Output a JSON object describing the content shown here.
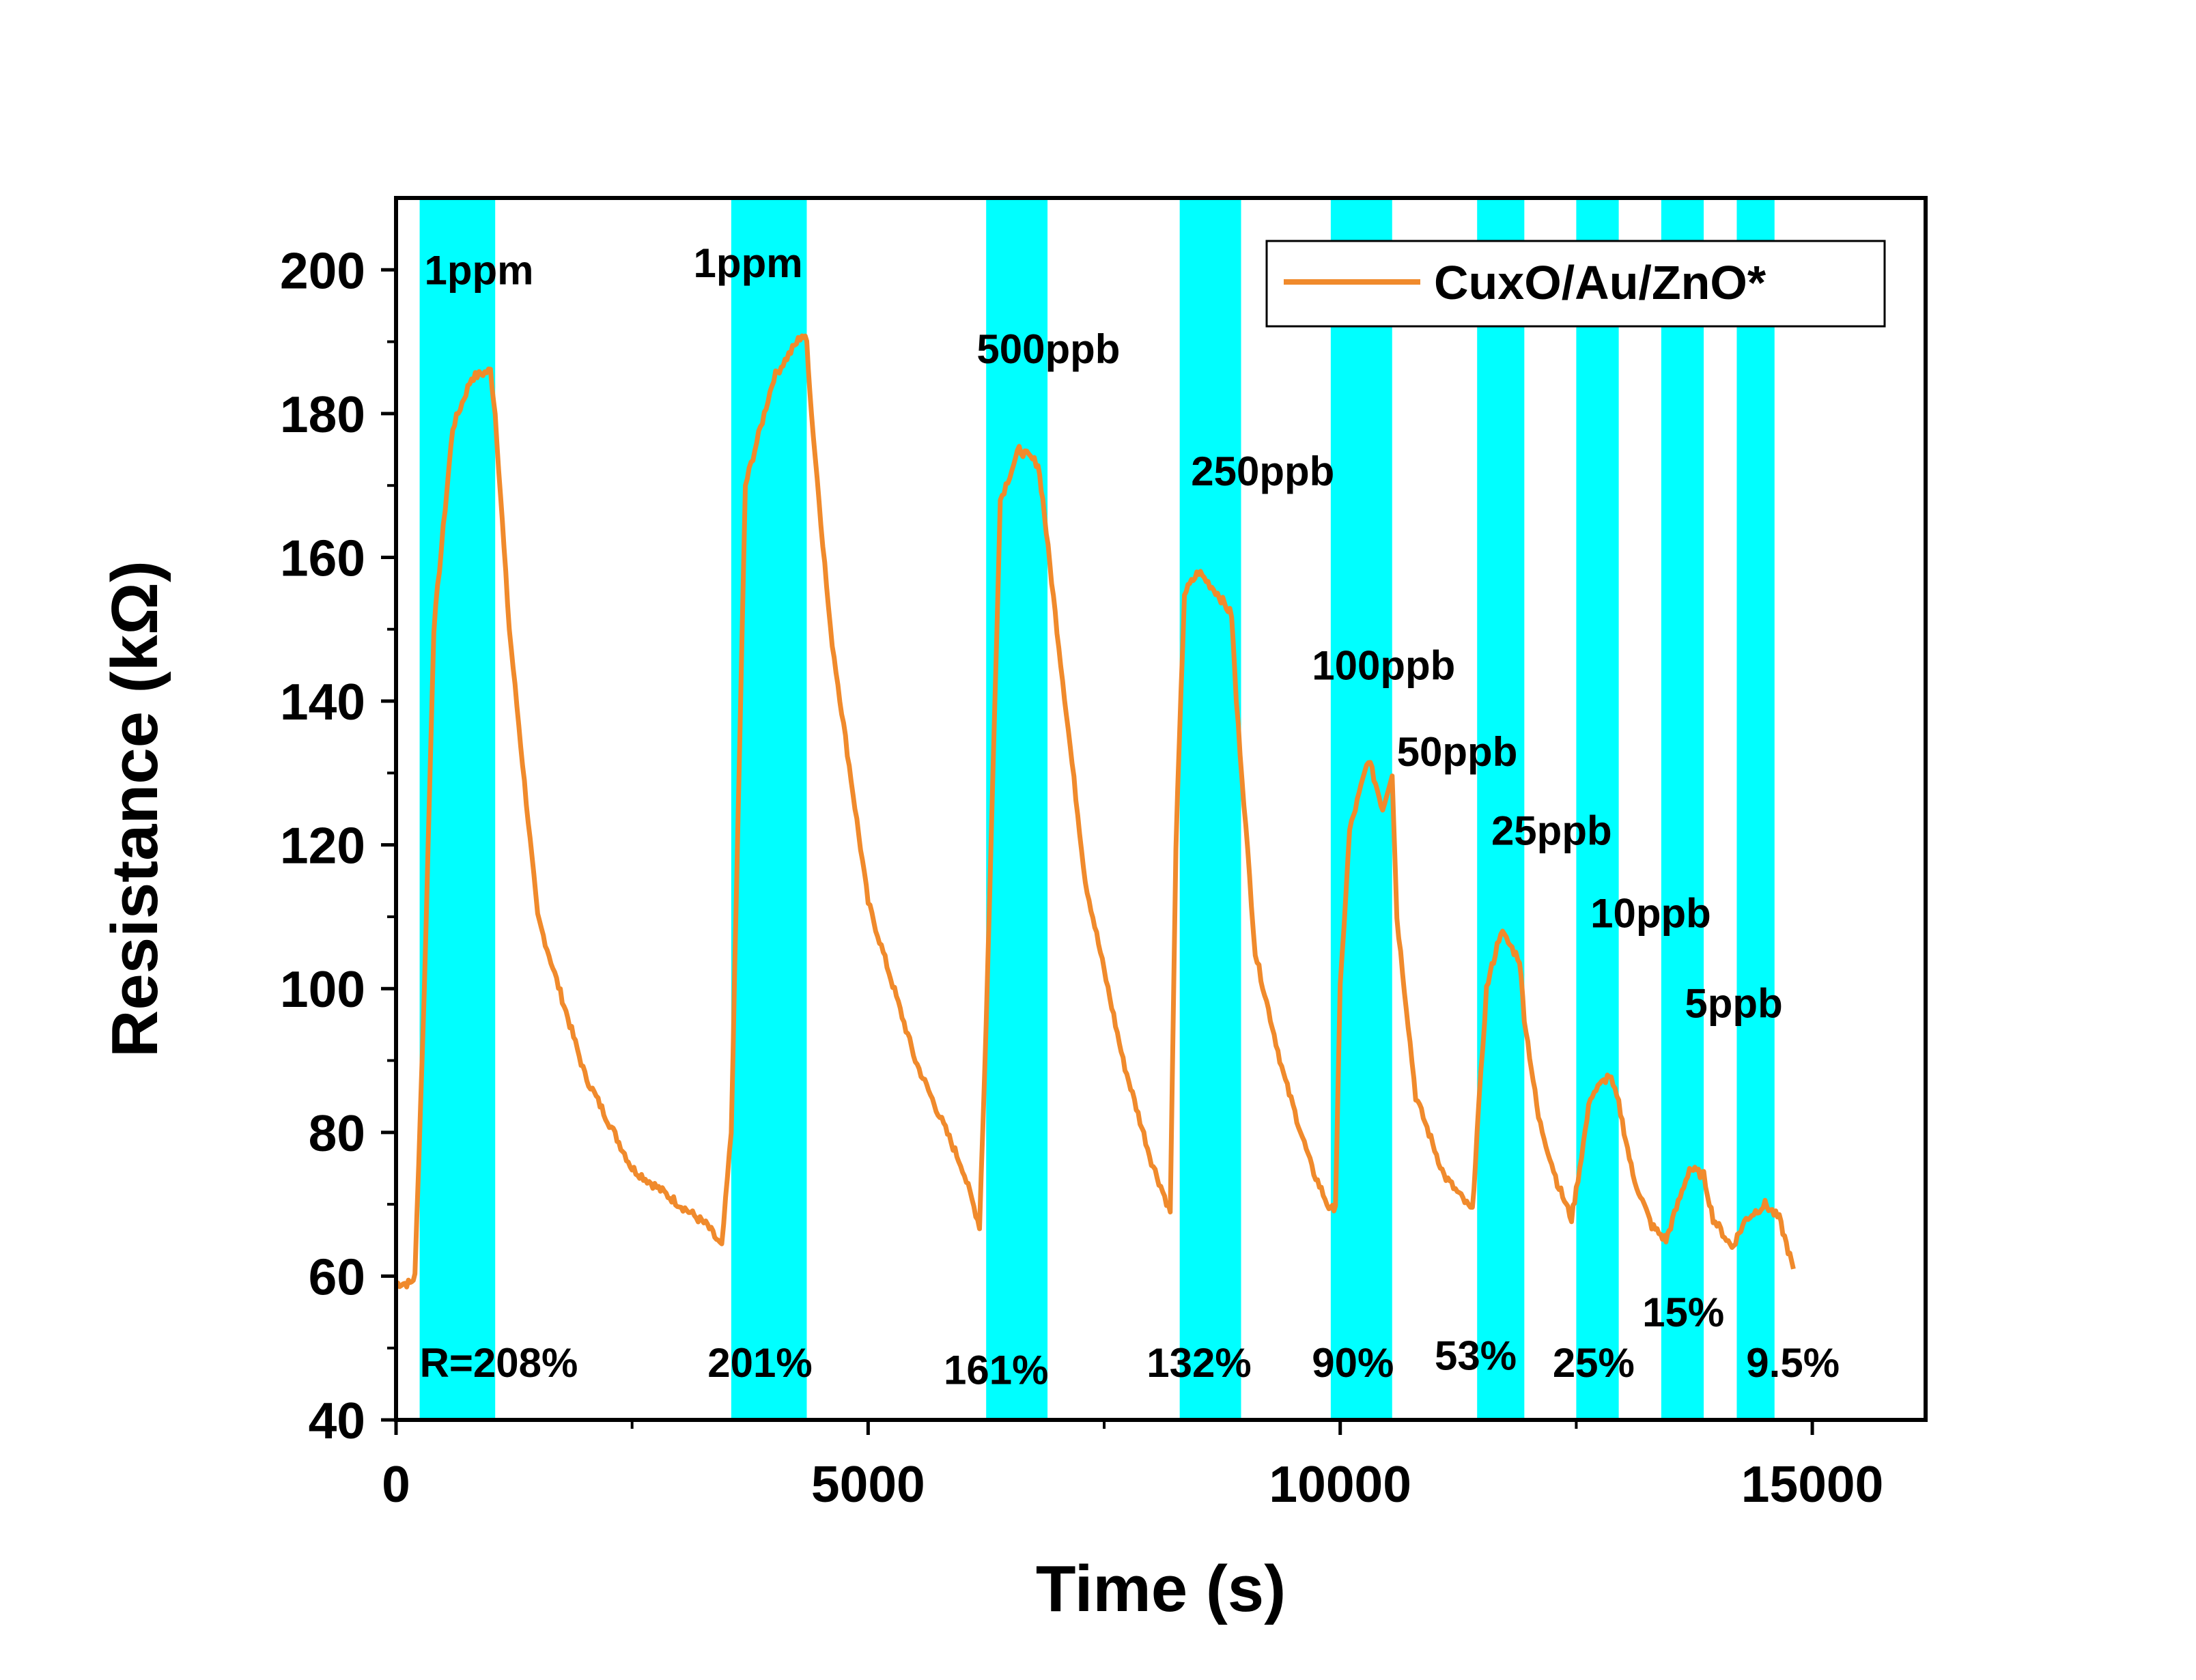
{
  "chart_data": {
    "type": "line",
    "xlabel": "Time (s)",
    "ylabel": "Resistance (kΩ)",
    "xlim": [
      0,
      16200
    ],
    "ylim": [
      40,
      210
    ],
    "x_ticks": [
      0,
      5000,
      10000,
      15000
    ],
    "y_ticks": [
      40,
      60,
      80,
      100,
      120,
      140,
      160,
      180,
      200
    ],
    "grid": false,
    "legend_position": "top-right",
    "colors": {
      "line": "#F08A2C",
      "band": "#00FFFF"
    },
    "series": [
      {
        "name": "CuxO/Au/ZnO*",
        "x": [
          0,
          150,
          200,
          300,
          400,
          600,
          800,
          1000,
          1050,
          1200,
          1500,
          2000,
          2500,
          3000,
          3300,
          3450,
          3550,
          3700,
          4000,
          4300,
          4350,
          4400,
          4600,
          5000,
          5500,
          6000,
          6180,
          6250,
          6400,
          6600,
          6800,
          6850,
          7000,
          7300,
          7700,
          8000,
          8200,
          8260,
          8350,
          8500,
          8700,
          8850,
          8900,
          9100,
          9400,
          9700,
          9900,
          9950,
          10000,
          10100,
          10300,
          10450,
          10550,
          10600,
          10800,
          11100,
          11400,
          11450,
          11550,
          11700,
          11900,
          11950,
          12100,
          12300,
          12450,
          12500,
          12650,
          12850,
          12950,
          13100,
          13300,
          13450,
          13500,
          13700,
          13850,
          13950,
          14150,
          14300,
          14500,
          14650,
          14800
        ],
        "y": [
          59,
          59,
          60,
          100,
          150,
          178,
          185,
          186,
          180,
          150,
          110,
          88,
          75,
          70,
          67,
          64,
          80,
          170,
          185,
          191,
          190,
          180,
          150,
          112,
          90,
          75,
          67,
          95,
          168,
          175,
          173,
          168,
          150,
          115,
          90,
          76,
          69,
          120,
          155,
          158,
          155,
          152,
          140,
          105,
          88,
          75,
          69,
          70,
          100,
          122,
          132,
          125,
          130,
          110,
          85,
          74,
          69,
          80,
          100,
          108,
          104,
          96,
          82,
          73,
          68,
          72,
          85,
          88,
          84,
          74,
          67,
          65,
          67,
          75,
          74,
          68,
          64,
          68,
          70,
          68,
          61
        ]
      }
    ],
    "exposure_windows": [
      [
        250,
        1050
      ],
      [
        3550,
        4350
      ],
      [
        6250,
        6900
      ],
      [
        8300,
        8950
      ],
      [
        9900,
        10550
      ],
      [
        11450,
        11950
      ],
      [
        12500,
        12950
      ],
      [
        13400,
        13850
      ],
      [
        14200,
        14600
      ]
    ],
    "concentration_labels": [
      {
        "text": "1ppm",
        "x": 300,
        "y": 198
      },
      {
        "text": "1ppm",
        "x": 3150,
        "y": 199
      },
      {
        "text": "500ppb",
        "x": 6150,
        "y": 187
      },
      {
        "text": "250ppb",
        "x": 8420,
        "y": 170
      },
      {
        "text": "100ppb",
        "x": 9700,
        "y": 143
      },
      {
        "text": "50ppb",
        "x": 10600,
        "y": 131
      },
      {
        "text": "25ppb",
        "x": 11600,
        "y": 120
      },
      {
        "text": "10ppb",
        "x": 12650,
        "y": 108.5
      },
      {
        "text": "5ppb",
        "x": 13650,
        "y": 96
      }
    ],
    "response_labels": [
      {
        "text": "R=208%",
        "x": 250,
        "y": 46
      },
      {
        "text": "201%",
        "x": 3300,
        "y": 46
      },
      {
        "text": "161%",
        "x": 5800,
        "y": 45
      },
      {
        "text": "132%",
        "x": 7950,
        "y": 46
      },
      {
        "text": "90%",
        "x": 9700,
        "y": 46
      },
      {
        "text": "53%",
        "x": 11000,
        "y": 47
      },
      {
        "text": "25%",
        "x": 12250,
        "y": 46
      },
      {
        "text": "15%",
        "x": 13200,
        "y": 53
      },
      {
        "text": "9.5%",
        "x": 14300,
        "y": 46
      }
    ]
  }
}
